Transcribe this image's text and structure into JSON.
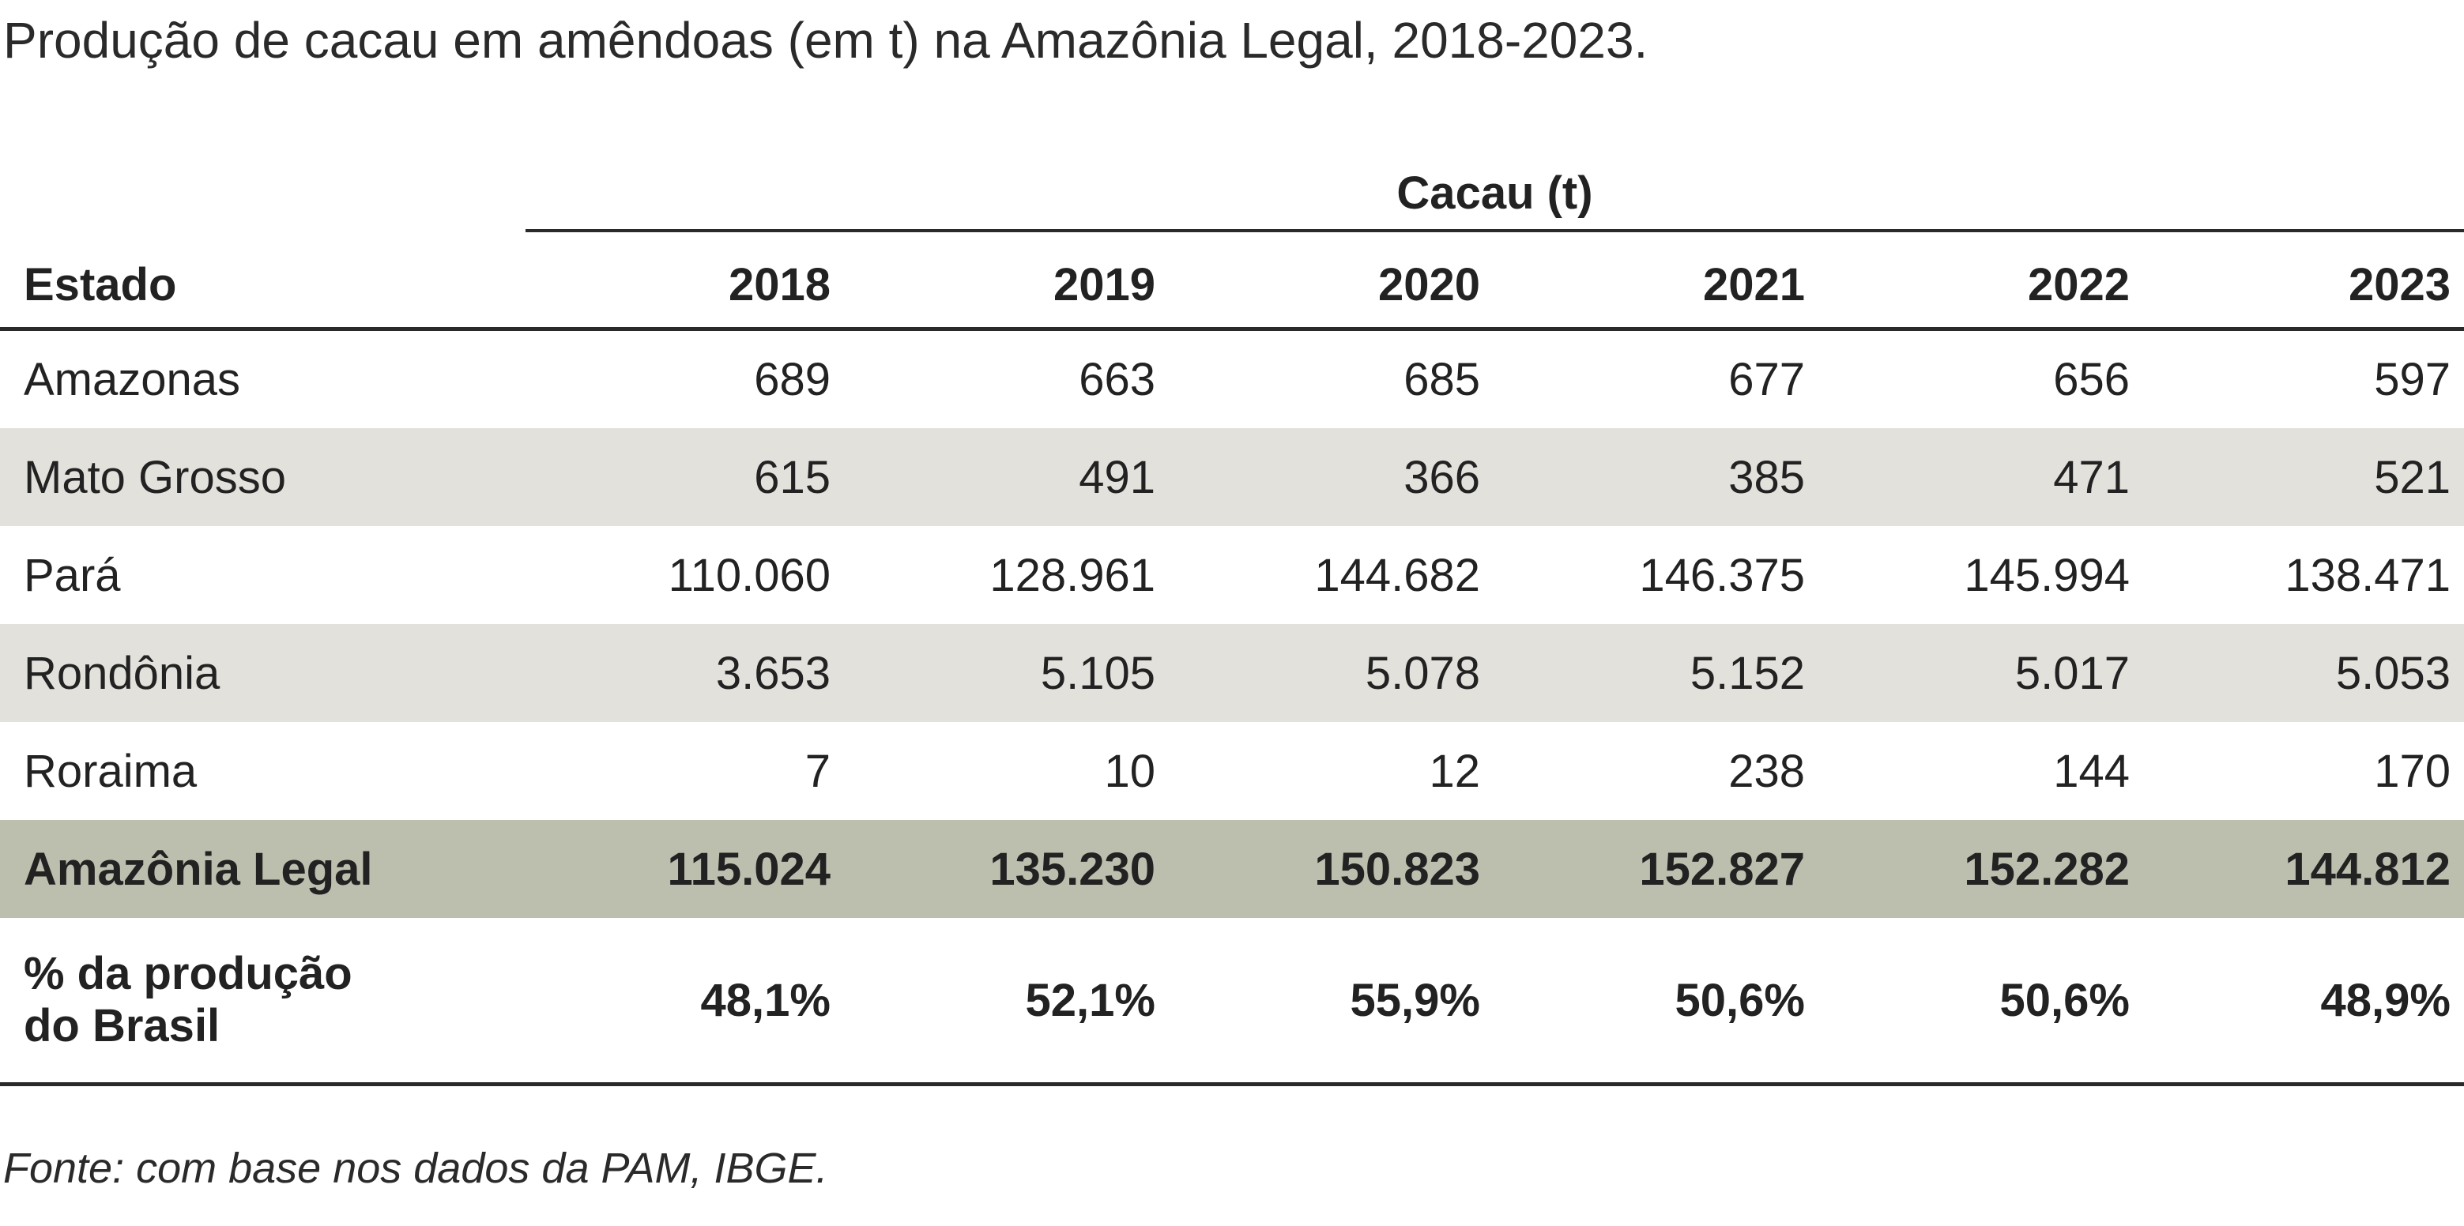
{
  "title": "Produção de cacau em amêndoas (em t) na Amazônia Legal, 2018-2023.",
  "table": {
    "group_header": "Cacau (t)",
    "columns": [
      "Estado",
      "2018",
      "2019",
      "2020",
      "2021",
      "2022",
      "2023"
    ],
    "rows": [
      {
        "label": "Amazonas",
        "values": [
          "689",
          "663",
          "685",
          "677",
          "656",
          "597"
        ]
      },
      {
        "label": "Mato Grosso",
        "values": [
          "615",
          "491",
          "366",
          "385",
          "471",
          "521"
        ]
      },
      {
        "label": "Pará",
        "values": [
          "110.060",
          "128.961",
          "144.682",
          "146.375",
          "145.994",
          "138.471"
        ]
      },
      {
        "label": "Rondônia",
        "values": [
          "3.653",
          "5.105",
          "5.078",
          "5.152",
          "5.017",
          "5.053"
        ]
      },
      {
        "label": "Roraima",
        "values": [
          "7",
          "10",
          "12",
          "238",
          "144",
          "170"
        ]
      },
      {
        "label": "Amazônia Legal",
        "values": [
          "115.024",
          "135.230",
          "150.823",
          "152.827",
          "152.282",
          "144.812"
        ]
      },
      {
        "label_line1": "% da produção",
        "label_line2": "do Brasil",
        "values": [
          "48,1%",
          "52,1%",
          "55,9%",
          "50,6%",
          "50,6%",
          "48,9%"
        ]
      }
    ]
  },
  "source": "Fonte: com base nos dados da PAM, IBGE.",
  "colors": {
    "stripe": "#e3e1dc",
    "total_row": "#bcbfae",
    "text": "#222222"
  }
}
